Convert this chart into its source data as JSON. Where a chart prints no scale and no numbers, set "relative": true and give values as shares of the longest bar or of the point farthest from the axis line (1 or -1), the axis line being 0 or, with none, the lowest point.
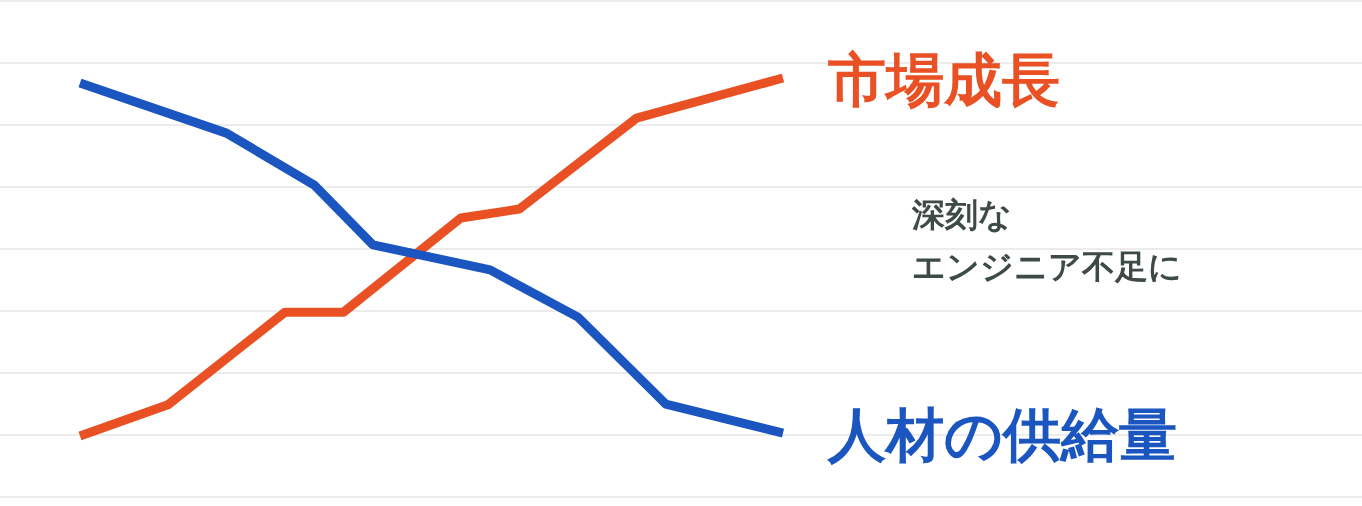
{
  "chart_data": {
    "type": "line",
    "relative": true,
    "grid": true,
    "legend": false,
    "marker": "none",
    "line_style": "solid",
    "categories": [
      null,
      null,
      null,
      null,
      null,
      null,
      null,
      null,
      null,
      null,
      null,
      null,
      null,
      null,
      null,
      null,
      null,
      null,
      null,
      null,
      null,
      null,
      null,
      null,
      null
    ],
    "series": [
      {
        "name": "市場成長",
        "color": "#e95125",
        "values": [
          0,
          null,
          null,
          0.087,
          null,
          null,
          null,
          0.346,
          null,
          0.346,
          null,
          null,
          null,
          0.609,
          null,
          0.634,
          null,
          null,
          null,
          0.888,
          null,
          null,
          null,
          null,
          1
        ]
      },
      {
        "name": "人材の供給量",
        "color": "#1a55c0",
        "values": [
          0.986,
          null,
          null,
          null,
          null,
          0.846,
          null,
          null,
          0.701,
          null,
          0.534,
          null,
          null,
          null,
          0.464,
          null,
          null,
          0.332,
          null,
          null,
          0.089,
          null,
          null,
          null,
          0.008
        ]
      }
    ],
    "annotations": [
      "深刻な",
      "エンジニア不足に"
    ]
  }
}
